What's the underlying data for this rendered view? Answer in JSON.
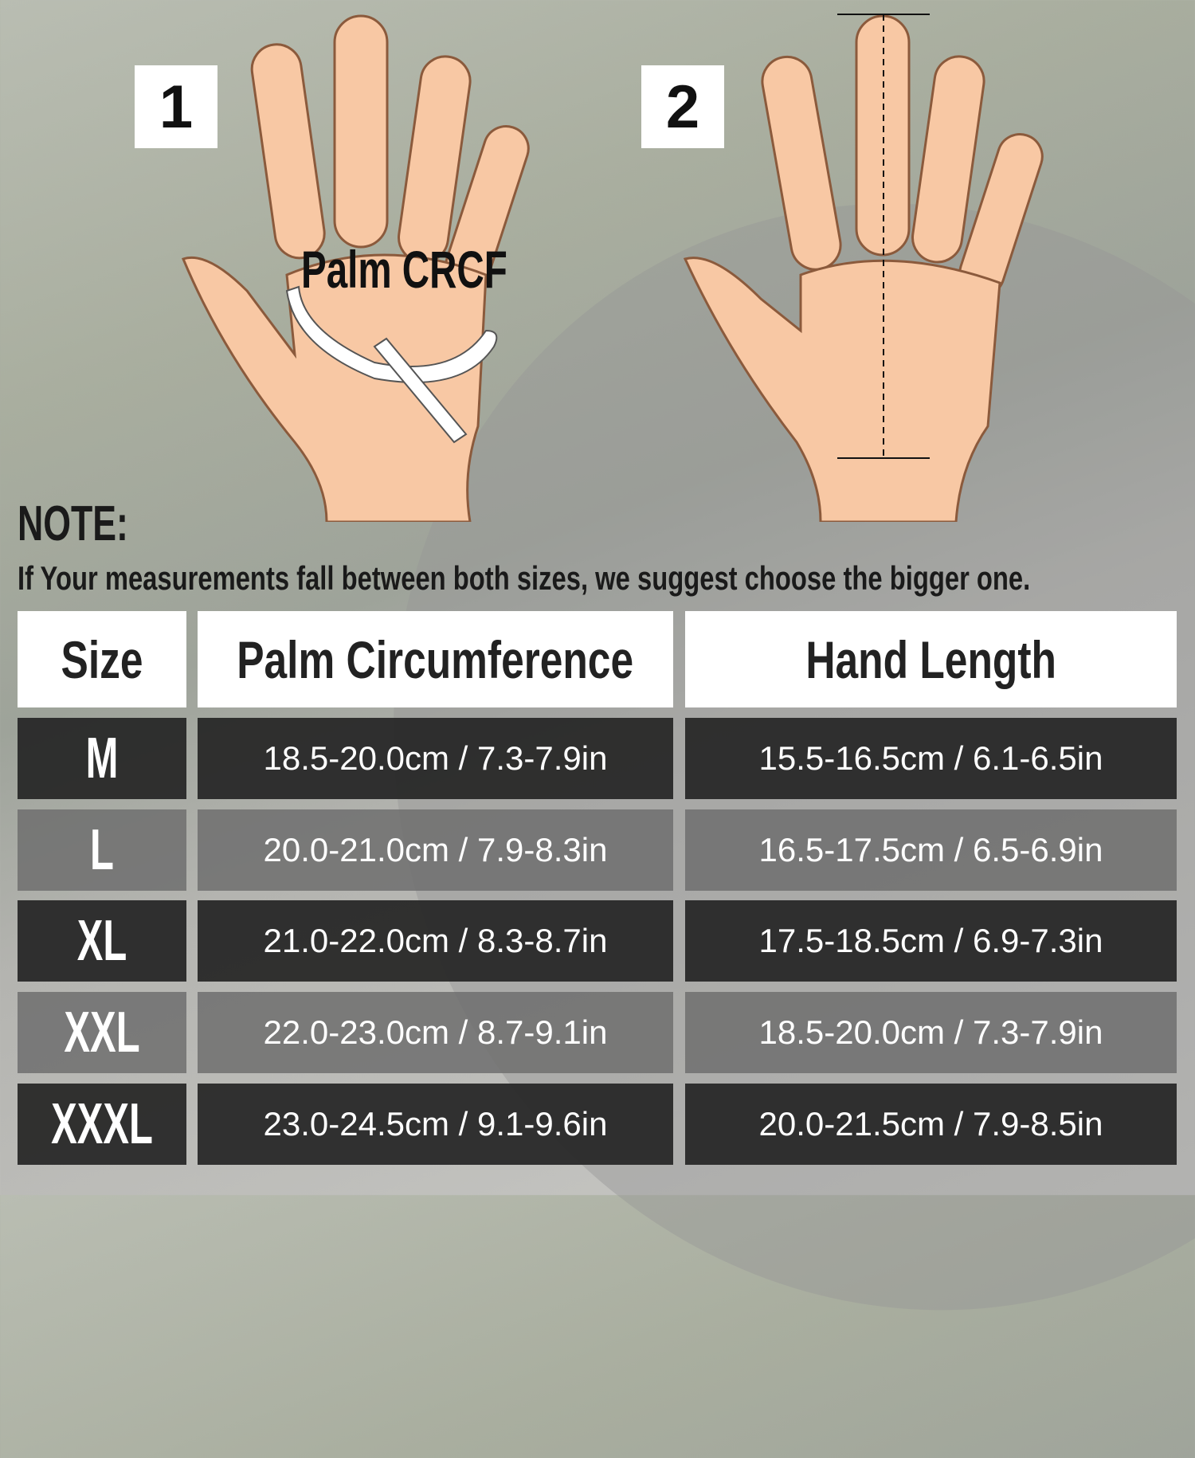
{
  "steps": {
    "step1_number": "1",
    "step2_number": "2",
    "palm_label": "Palm CRCF"
  },
  "note": {
    "title": "NOTE:",
    "text": "If Your measurements fall between both sizes, we suggest choose the bigger one."
  },
  "table": {
    "headers": [
      "Size",
      "Palm Circumference",
      "Hand Length"
    ],
    "rows": [
      {
        "size": "M",
        "palm": "18.5-20.0cm / 7.3-7.9in",
        "length": "15.5-16.5cm / 6.1-6.5in"
      },
      {
        "size": "L",
        "palm": "20.0-21.0cm / 7.9-8.3in",
        "length": "16.5-17.5cm / 6.5-6.9in"
      },
      {
        "size": "XL",
        "palm": "21.0-22.0cm / 8.3-8.7in",
        "length": "17.5-18.5cm / 6.9-7.3in"
      },
      {
        "size": "XXL",
        "palm": "22.0-23.0cm / 8.7-9.1in",
        "length": "18.5-20.0cm / 7.3-7.9in"
      },
      {
        "size": "XXXL",
        "palm": "23.0-24.5cm / 9.1-9.6in",
        "length": "20.0-21.5cm / 7.9-8.5in"
      }
    ],
    "row_colors": [
      "#2a2a2a",
      "#6e6e6e"
    ]
  },
  "colors": {
    "skin": "#f8c8a4",
    "outline": "#8b5a3c"
  }
}
